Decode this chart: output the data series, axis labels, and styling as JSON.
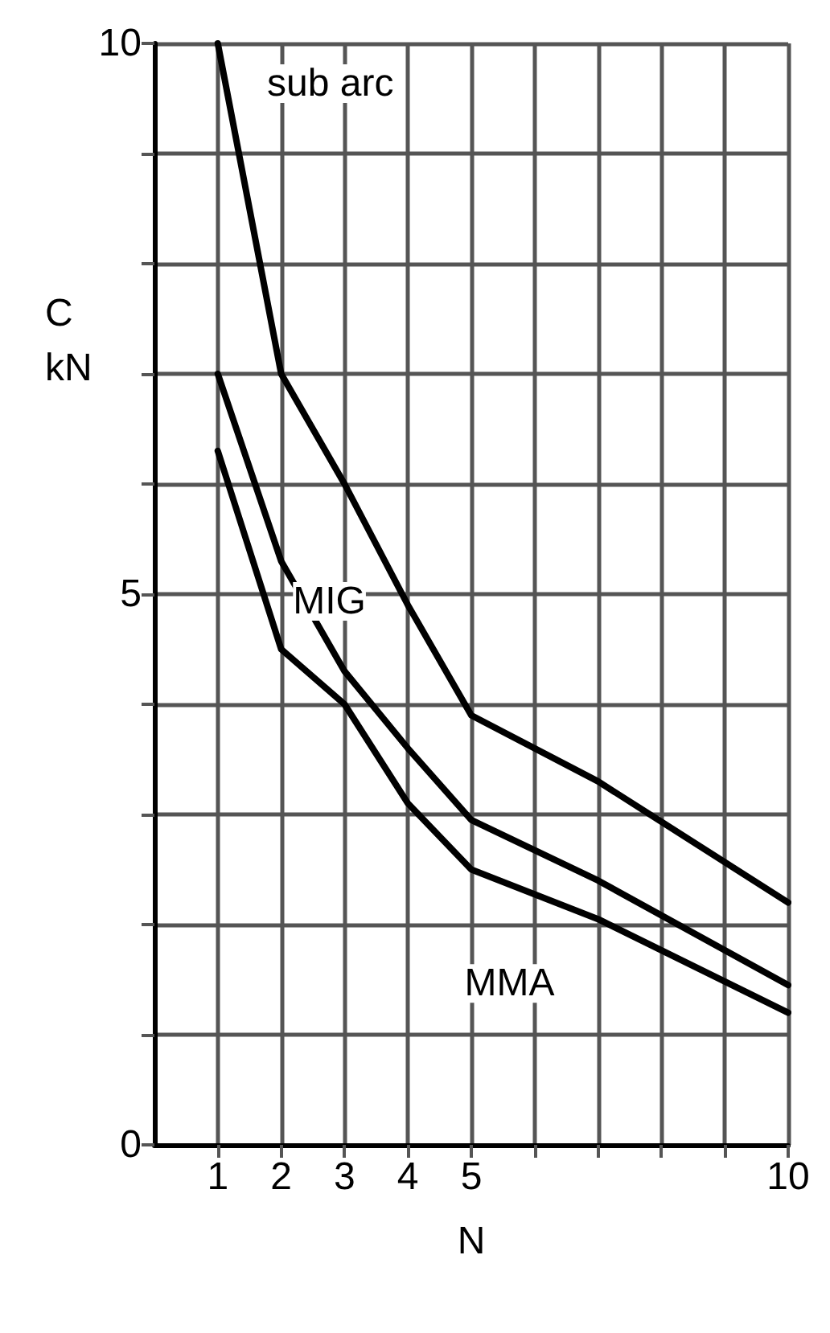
{
  "chart_data": {
    "type": "line",
    "xlabel": "N",
    "ylabel": "C\nkN",
    "xlim": [
      0,
      10
    ],
    "ylim": [
      0,
      10
    ],
    "xticks": [
      1,
      2,
      3,
      4,
      5,
      {
        "value": 6,
        "label": null
      },
      {
        "value": 7,
        "label": null
      },
      {
        "value": 8,
        "label": null
      },
      {
        "value": 9,
        "label": null
      },
      10
    ],
    "yticks": [
      0,
      {
        "value": 1,
        "label": null
      },
      {
        "value": 2,
        "label": null
      },
      {
        "value": 3,
        "label": null
      },
      {
        "value": 4,
        "label": null
      },
      5,
      {
        "value": 6,
        "label": null
      },
      {
        "value": 7,
        "label": null
      },
      {
        "value": 8,
        "label": null
      },
      {
        "value": 9,
        "label": null
      },
      10
    ],
    "x": [
      1,
      2,
      3,
      4,
      5,
      7,
      10
    ],
    "series": [
      {
        "name": "sub arc",
        "color": "#000000",
        "values": [
          10,
          7,
          6,
          4.9,
          3.9,
          3.3,
          2.2
        ]
      },
      {
        "name": "MIG",
        "color": "#000000",
        "values": [
          7,
          5.3,
          4.3,
          3.6,
          2.95,
          2.4,
          1.45
        ]
      },
      {
        "name": "MMA",
        "color": "#000000",
        "values": [
          6.3,
          4.5,
          4.0,
          3.1,
          2.5,
          2.05,
          1.2
        ]
      }
    ],
    "grid": true,
    "legend": false,
    "marker": "none",
    "line_style": "solid"
  }
}
